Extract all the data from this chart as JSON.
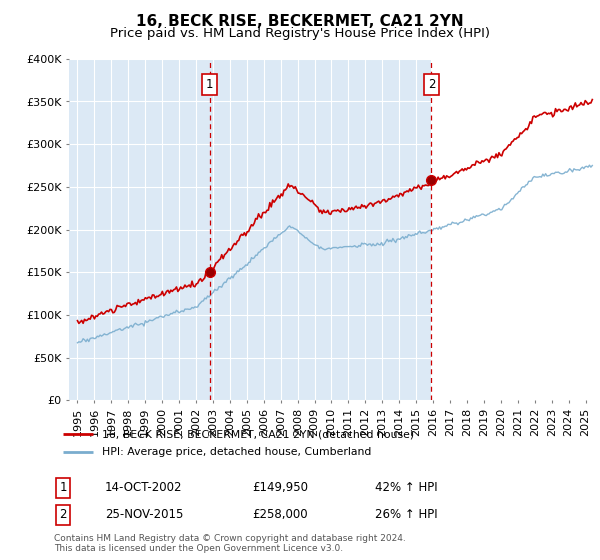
{
  "title": "16, BECK RISE, BECKERMET, CA21 2YN",
  "subtitle": "Price paid vs. HM Land Registry's House Price Index (HPI)",
  "legend_line1": "16, BECK RISE, BECKERMET, CA21 2YN (detached house)",
  "legend_line2": "HPI: Average price, detached house, Cumberland",
  "sale1_date": "14-OCT-2002",
  "sale1_price": "£149,950",
  "sale1_hpi": "42% ↑ HPI",
  "sale1_year": 2002.8,
  "sale1_value": 149950,
  "sale2_date": "25-NOV-2015",
  "sale2_price": "£258,000",
  "sale2_hpi": "26% ↑ HPI",
  "sale2_year": 2015.9,
  "sale2_value": 258000,
  "footnote": "Contains HM Land Registry data © Crown copyright and database right 2024.\nThis data is licensed under the Open Government Licence v3.0.",
  "ylim": [
    0,
    400000
  ],
  "xlim_start": 1994.5,
  "xlim_end": 2025.5,
  "background_color": "#dce9f5",
  "shade_color": "#dce9f5",
  "grid_color": "#ffffff",
  "red_line_color": "#cc0000",
  "blue_line_color": "#7aadce",
  "vline_color": "#cc0000",
  "title_fontsize": 11,
  "subtitle_fontsize": 9.5,
  "tick_fontsize": 8,
  "ytick_labels": [
    "£0",
    "£50K",
    "£100K",
    "£150K",
    "£200K",
    "£250K",
    "£300K",
    "£350K",
    "£400K"
  ],
  "ytick_values": [
    0,
    50000,
    100000,
    150000,
    200000,
    250000,
    300000,
    350000,
    400000
  ],
  "xtick_years": [
    1995,
    1996,
    1997,
    1998,
    1999,
    2000,
    2001,
    2002,
    2003,
    2004,
    2005,
    2006,
    2007,
    2008,
    2009,
    2010,
    2011,
    2012,
    2013,
    2014,
    2015,
    2016,
    2017,
    2018,
    2019,
    2020,
    2021,
    2022,
    2023,
    2024,
    2025
  ]
}
